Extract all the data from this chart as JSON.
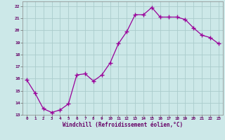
{
  "x": [
    0,
    1,
    2,
    3,
    4,
    5,
    6,
    7,
    8,
    9,
    10,
    11,
    12,
    13,
    14,
    15,
    16,
    17,
    18,
    19,
    20,
    21,
    22,
    23
  ],
  "y": [
    15.9,
    14.8,
    13.5,
    13.2,
    13.4,
    13.9,
    16.3,
    16.4,
    15.8,
    16.3,
    17.3,
    18.9,
    19.9,
    21.3,
    21.3,
    21.9,
    21.1,
    21.1,
    21.1,
    20.9,
    20.2,
    19.6,
    19.4,
    18.9
  ],
  "line_color": "#990099",
  "marker": "+",
  "marker_size": 4,
  "marker_color": "#990099",
  "bg_color": "#cce8e8",
  "grid_color": "#aacccc",
  "xlabel": "Windchill (Refroidissement éolien,°C)",
  "xlabel_color": "#660066",
  "tick_color": "#660066",
  "ylabel_ticks": [
    13,
    14,
    15,
    16,
    17,
    18,
    19,
    20,
    21,
    22
  ],
  "xlim": [
    -0.5,
    23.5
  ],
  "ylim": [
    13,
    22.4
  ],
  "title": ""
}
